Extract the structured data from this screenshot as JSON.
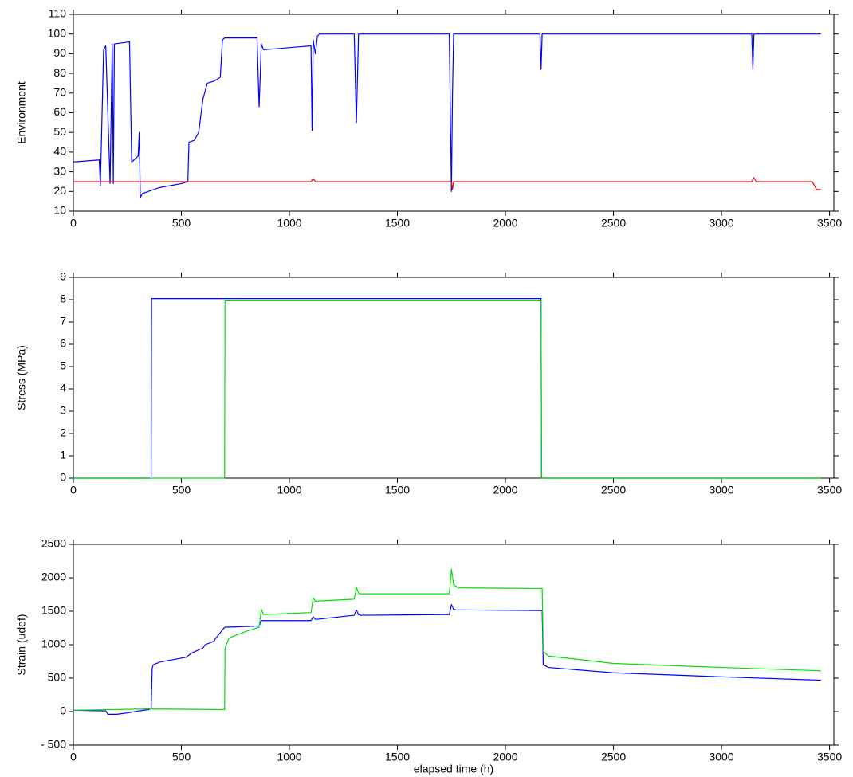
{
  "chart_data": [
    {
      "type": "line",
      "ylabel": "Environment",
      "xlim": [
        0,
        3520
      ],
      "xticks": [
        0,
        500,
        1000,
        1500,
        2000,
        2500,
        3000,
        3500
      ],
      "ylim": [
        10,
        110
      ],
      "yticks": [
        10,
        20,
        30,
        40,
        50,
        60,
        70,
        80,
        90,
        100,
        110
      ],
      "series": [
        {
          "color": "#0000ff",
          "x": [
            0,
            120,
            125,
            140,
            150,
            170,
            180,
            185,
            190,
            260,
            270,
            300,
            305,
            310,
            320,
            400,
            500,
            530,
            535,
            560,
            580,
            600,
            620,
            650,
            680,
            690,
            700,
            850,
            860,
            870,
            880,
            1100,
            1105,
            1110,
            1120,
            1130,
            1140,
            1300,
            1310,
            1320,
            1330,
            1740,
            1750,
            1755,
            1760,
            2160,
            2165,
            2170,
            3140,
            3145,
            3150,
            3460
          ],
          "values": [
            35,
            36,
            23,
            92,
            94,
            24,
            95,
            24,
            95,
            96,
            35,
            38,
            50,
            17,
            19,
            22,
            24,
            25,
            45,
            46,
            50,
            67,
            75,
            76,
            78,
            97,
            98,
            98,
            63,
            95,
            92,
            94,
            51,
            97,
            90,
            99,
            100,
            100,
            55,
            100,
            100,
            100,
            20,
            70,
            100,
            100,
            82,
            100,
            100,
            82,
            100,
            100
          ]
        },
        {
          "color": "#ff0000",
          "x": [
            0,
            1100,
            1110,
            1120,
            1750,
            1755,
            1760,
            3140,
            3150,
            3160,
            3420,
            3440,
            3460
          ],
          "values": [
            25,
            25,
            26.5,
            25,
            25,
            21,
            25,
            25,
            27,
            25,
            25,
            21,
            21
          ]
        }
      ]
    },
    {
      "type": "line",
      "ylabel": "Stress (MPa)",
      "xlim": [
        0,
        3520
      ],
      "xticks": [
        0,
        500,
        1000,
        1500,
        2000,
        2500,
        3000,
        3500
      ],
      "ylim": [
        0,
        9
      ],
      "yticks": [
        0,
        1,
        2,
        3,
        4,
        5,
        6,
        7,
        8,
        9
      ],
      "series": [
        {
          "color": "#0000ff",
          "x": [
            0,
            360,
            362,
            2165,
            2167,
            3460
          ],
          "values": [
            0,
            0,
            8.05,
            8.05,
            0,
            0
          ]
        },
        {
          "color": "#00e000",
          "x": [
            0,
            700,
            702,
            2165,
            2167,
            3460
          ],
          "values": [
            0,
            0,
            7.95,
            7.95,
            0,
            0
          ]
        }
      ]
    },
    {
      "type": "line",
      "ylabel": "Strain (udef)",
      "xlabel": "elapsed time (h)",
      "xlim": [
        0,
        3520
      ],
      "xticks": [
        0,
        500,
        1000,
        1500,
        2000,
        2500,
        3000,
        3500
      ],
      "ylim": [
        -500,
        2500
      ],
      "yticks": [
        {
          "value": -500,
          "label": "- 500"
        },
        0,
        500,
        1000,
        1500,
        2000,
        2500
      ],
      "series": [
        {
          "color": "#0000ff",
          "x": [
            0,
            150,
            160,
            200,
            250,
            300,
            350,
            360,
            365,
            370,
            400,
            500,
            520,
            550,
            600,
            610,
            650,
            660,
            700,
            860,
            870,
            880,
            1100,
            1110,
            1120,
            1130,
            1300,
            1310,
            1320,
            1330,
            1740,
            1750,
            1760,
            1770,
            2160,
            2170,
            2175,
            2200,
            2500,
            3000,
            3460
          ],
          "values": [
            20,
            10,
            -40,
            -40,
            -20,
            10,
            30,
            40,
            650,
            700,
            740,
            800,
            810,
            880,
            950,
            1000,
            1050,
            1100,
            1260,
            1280,
            1360,
            1360,
            1360,
            1420,
            1380,
            1380,
            1440,
            1520,
            1450,
            1440,
            1450,
            1600,
            1530,
            1520,
            1510,
            1510,
            700,
            660,
            580,
            520,
            470
          ]
        },
        {
          "color": "#00e000",
          "x": [
            0,
            350,
            700,
            702,
            720,
            800,
            860,
            870,
            880,
            1100,
            1110,
            1120,
            1300,
            1310,
            1320,
            1330,
            1740,
            1750,
            1760,
            1780,
            2160,
            2170,
            2175,
            2200,
            2500,
            3000,
            3460
          ],
          "values": [
            20,
            40,
            30,
            950,
            1100,
            1200,
            1260,
            1530,
            1450,
            1480,
            1700,
            1650,
            1680,
            1860,
            1770,
            1760,
            1760,
            2130,
            1900,
            1850,
            1840,
            1840,
            900,
            830,
            720,
            660,
            610
          ]
        }
      ]
    }
  ]
}
